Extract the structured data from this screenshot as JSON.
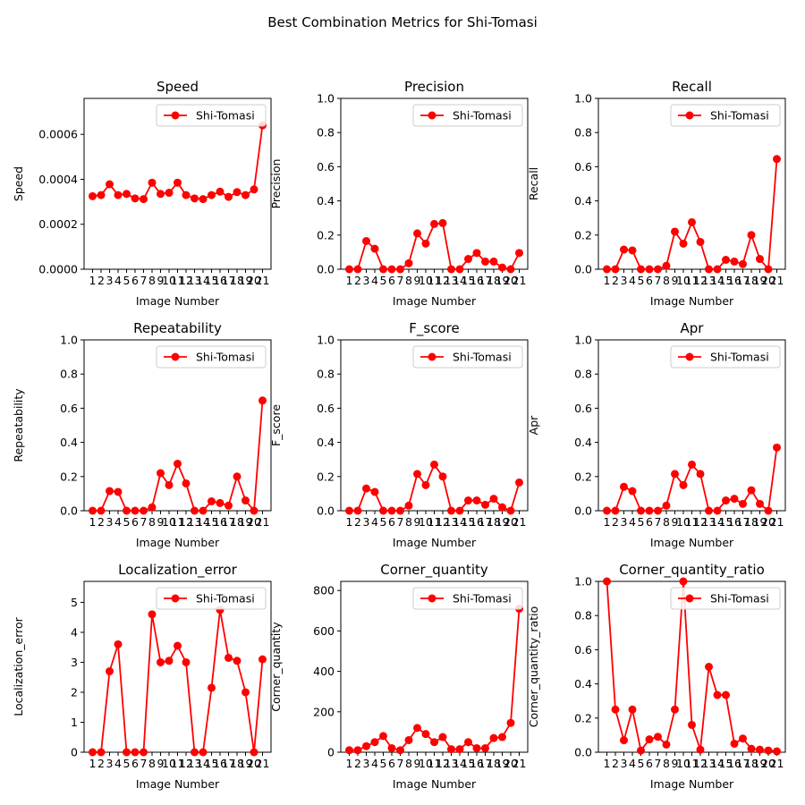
{
  "figure": {
    "title": "Best Combination Metrics for Shi-Tomasi",
    "colors": {
      "series": "#ff0000",
      "axis": "#000000",
      "background": "#ffffff"
    }
  },
  "chart_data": [
    {
      "type": "line",
      "title": "Speed",
      "xlabel": "Image Number",
      "ylabel": "Speed",
      "x": [
        1,
        2,
        3,
        4,
        5,
        6,
        7,
        8,
        9,
        10,
        11,
        12,
        13,
        14,
        15,
        16,
        17,
        18,
        19,
        20,
        21
      ],
      "xlim": [
        0,
        22
      ],
      "ylim": [
        0,
        0.00076
      ],
      "yticks": [
        "0.0000",
        "0.0002",
        "0.0004",
        "0.0006"
      ],
      "ytick_values": [
        0,
        0.0002,
        0.0004,
        0.0006
      ],
      "legend": "upper right",
      "series": [
        {
          "name": "Shi-Tomasi",
          "values": [
            0.000325,
            0.00033,
            0.000378,
            0.00033,
            0.000335,
            0.000315,
            0.000312,
            0.000385,
            0.000335,
            0.00034,
            0.000385,
            0.00033,
            0.000315,
            0.000312,
            0.00033,
            0.000345,
            0.000322,
            0.000343,
            0.00033,
            0.000355,
            0.00064
          ]
        }
      ]
    },
    {
      "type": "line",
      "title": "Precision",
      "xlabel": "Image Number",
      "ylabel": "Precision",
      "x": [
        1,
        2,
        3,
        4,
        5,
        6,
        7,
        8,
        9,
        10,
        11,
        12,
        13,
        14,
        15,
        16,
        17,
        18,
        19,
        20,
        21
      ],
      "xlim": [
        0,
        22
      ],
      "ylim": [
        0,
        1.0
      ],
      "yticks": [
        "0.0",
        "0.2",
        "0.4",
        "0.6",
        "0.8",
        "1.0"
      ],
      "ytick_values": [
        0,
        0.2,
        0.4,
        0.6,
        0.8,
        1.0
      ],
      "legend": "upper right",
      "series": [
        {
          "name": "Shi-Tomasi",
          "values": [
            0,
            0,
            0.165,
            0.12,
            0,
            0,
            0,
            0.035,
            0.21,
            0.15,
            0.265,
            0.27,
            0,
            0,
            0.06,
            0.095,
            0.045,
            0.045,
            0.01,
            0,
            0.095
          ]
        }
      ]
    },
    {
      "type": "line",
      "title": "Recall",
      "xlabel": "Image Number",
      "ylabel": "Recall",
      "x": [
        1,
        2,
        3,
        4,
        5,
        6,
        7,
        8,
        9,
        10,
        11,
        12,
        13,
        14,
        15,
        16,
        17,
        18,
        19,
        20,
        21
      ],
      "xlim": [
        0,
        22
      ],
      "ylim": [
        0,
        1.0
      ],
      "yticks": [
        "0.0",
        "0.2",
        "0.4",
        "0.6",
        "0.8",
        "1.0"
      ],
      "ytick_values": [
        0,
        0.2,
        0.4,
        0.6,
        0.8,
        1.0
      ],
      "legend": "upper right",
      "series": [
        {
          "name": "Shi-Tomasi",
          "values": [
            0,
            0,
            0.115,
            0.11,
            0,
            0,
            0,
            0.02,
            0.22,
            0.15,
            0.275,
            0.16,
            0,
            0,
            0.055,
            0.045,
            0.03,
            0.2,
            0.06,
            0,
            0.645
          ]
        }
      ]
    },
    {
      "type": "line",
      "title": "Repeatability",
      "xlabel": "Image Number",
      "ylabel": "Repeatability",
      "x": [
        1,
        2,
        3,
        4,
        5,
        6,
        7,
        8,
        9,
        10,
        11,
        12,
        13,
        14,
        15,
        16,
        17,
        18,
        19,
        20,
        21
      ],
      "xlim": [
        0,
        22
      ],
      "ylim": [
        0,
        1.0
      ],
      "yticks": [
        "0.0",
        "0.2",
        "0.4",
        "0.6",
        "0.8",
        "1.0"
      ],
      "ytick_values": [
        0,
        0.2,
        0.4,
        0.6,
        0.8,
        1.0
      ],
      "legend": "upper right",
      "series": [
        {
          "name": "Shi-Tomasi",
          "values": [
            0,
            0,
            0.115,
            0.11,
            0,
            0,
            0,
            0.02,
            0.22,
            0.15,
            0.275,
            0.16,
            0,
            0,
            0.055,
            0.045,
            0.03,
            0.2,
            0.06,
            0,
            0.645
          ]
        }
      ]
    },
    {
      "type": "line",
      "title": "F_score",
      "xlabel": "Image Number",
      "ylabel": "F_score",
      "x": [
        1,
        2,
        3,
        4,
        5,
        6,
        7,
        8,
        9,
        10,
        11,
        12,
        13,
        14,
        15,
        16,
        17,
        18,
        19,
        20,
        21
      ],
      "xlim": [
        0,
        22
      ],
      "ylim": [
        0,
        1.0
      ],
      "yticks": [
        "0.0",
        "0.2",
        "0.4",
        "0.6",
        "0.8",
        "1.0"
      ],
      "ytick_values": [
        0,
        0.2,
        0.4,
        0.6,
        0.8,
        1.0
      ],
      "legend": "upper right",
      "series": [
        {
          "name": "Shi-Tomasi",
          "values": [
            0,
            0,
            0.13,
            0.11,
            0,
            0,
            0,
            0.03,
            0.215,
            0.15,
            0.27,
            0.2,
            0,
            0,
            0.06,
            0.06,
            0.035,
            0.07,
            0.02,
            0,
            0.165
          ]
        }
      ]
    },
    {
      "type": "line",
      "title": "Apr",
      "xlabel": "Image Number",
      "ylabel": "Apr",
      "x": [
        1,
        2,
        3,
        4,
        5,
        6,
        7,
        8,
        9,
        10,
        11,
        12,
        13,
        14,
        15,
        16,
        17,
        18,
        19,
        20,
        21
      ],
      "xlim": [
        0,
        22
      ],
      "ylim": [
        0,
        1.0
      ],
      "yticks": [
        "0.0",
        "0.2",
        "0.4",
        "0.6",
        "0.8",
        "1.0"
      ],
      "ytick_values": [
        0,
        0.2,
        0.4,
        0.6,
        0.8,
        1.0
      ],
      "legend": "upper right",
      "series": [
        {
          "name": "Shi-Tomasi",
          "values": [
            0,
            0,
            0.14,
            0.115,
            0,
            0,
            0,
            0.03,
            0.215,
            0.15,
            0.27,
            0.215,
            0,
            0,
            0.06,
            0.07,
            0.04,
            0.12,
            0.04,
            0,
            0.37
          ]
        }
      ]
    },
    {
      "type": "line",
      "title": "Localization_error",
      "xlabel": "Image Number",
      "ylabel": "Localization_error",
      "x": [
        1,
        2,
        3,
        4,
        5,
        6,
        7,
        8,
        9,
        10,
        11,
        12,
        13,
        14,
        15,
        16,
        17,
        18,
        19,
        20,
        21
      ],
      "xlim": [
        0,
        22
      ],
      "ylim": [
        0,
        5.7
      ],
      "yticks": [
        "0",
        "1",
        "2",
        "3",
        "4",
        "5"
      ],
      "ytick_values": [
        0,
        1,
        2,
        3,
        4,
        5
      ],
      "legend": "upper right",
      "series": [
        {
          "name": "Shi-Tomasi",
          "values": [
            0,
            0,
            2.7,
            3.6,
            0,
            0,
            0,
            4.6,
            3.0,
            3.05,
            3.55,
            3.0,
            0,
            0,
            2.15,
            4.75,
            3.15,
            3.05,
            2.0,
            0,
            3.1
          ]
        }
      ]
    },
    {
      "type": "line",
      "title": "Corner_quantity",
      "xlabel": "Image Number",
      "ylabel": "Corner_quantity",
      "x": [
        1,
        2,
        3,
        4,
        5,
        6,
        7,
        8,
        9,
        10,
        11,
        12,
        13,
        14,
        15,
        16,
        17,
        18,
        19,
        20,
        21
      ],
      "xlim": [
        0,
        22
      ],
      "ylim": [
        0,
        845
      ],
      "yticks": [
        "0",
        "200",
        "400",
        "600",
        "800"
      ],
      "ytick_values": [
        0,
        200,
        400,
        600,
        800
      ],
      "legend": "upper right",
      "series": [
        {
          "name": "Shi-Tomasi",
          "values": [
            10,
            10,
            30,
            50,
            80,
            20,
            10,
            60,
            120,
            90,
            50,
            75,
            15,
            15,
            50,
            20,
            20,
            70,
            75,
            145,
            710
          ]
        }
      ]
    },
    {
      "type": "line",
      "title": "Corner_quantity_ratio",
      "xlabel": "Image Number",
      "ylabel": "Corner_quantity_ratio",
      "x": [
        1,
        2,
        3,
        4,
        5,
        6,
        7,
        8,
        9,
        10,
        11,
        12,
        13,
        14,
        15,
        16,
        17,
        18,
        19,
        20,
        21
      ],
      "xlim": [
        0,
        22
      ],
      "ylim": [
        0,
        1.0
      ],
      "yticks": [
        "0.0",
        "0.2",
        "0.4",
        "0.6",
        "0.8",
        "1.0"
      ],
      "ytick_values": [
        0,
        0.2,
        0.4,
        0.6,
        0.8,
        1.0
      ],
      "legend": "upper right",
      "series": [
        {
          "name": "Shi-Tomasi",
          "values": [
            1.0,
            0.25,
            0.07,
            0.25,
            0.01,
            0.075,
            0.09,
            0.045,
            0.25,
            1.0,
            0.16,
            0.015,
            0.5,
            0.335,
            0.335,
            0.05,
            0.08,
            0.02,
            0.015,
            0.01,
            0.005
          ]
        }
      ]
    }
  ]
}
